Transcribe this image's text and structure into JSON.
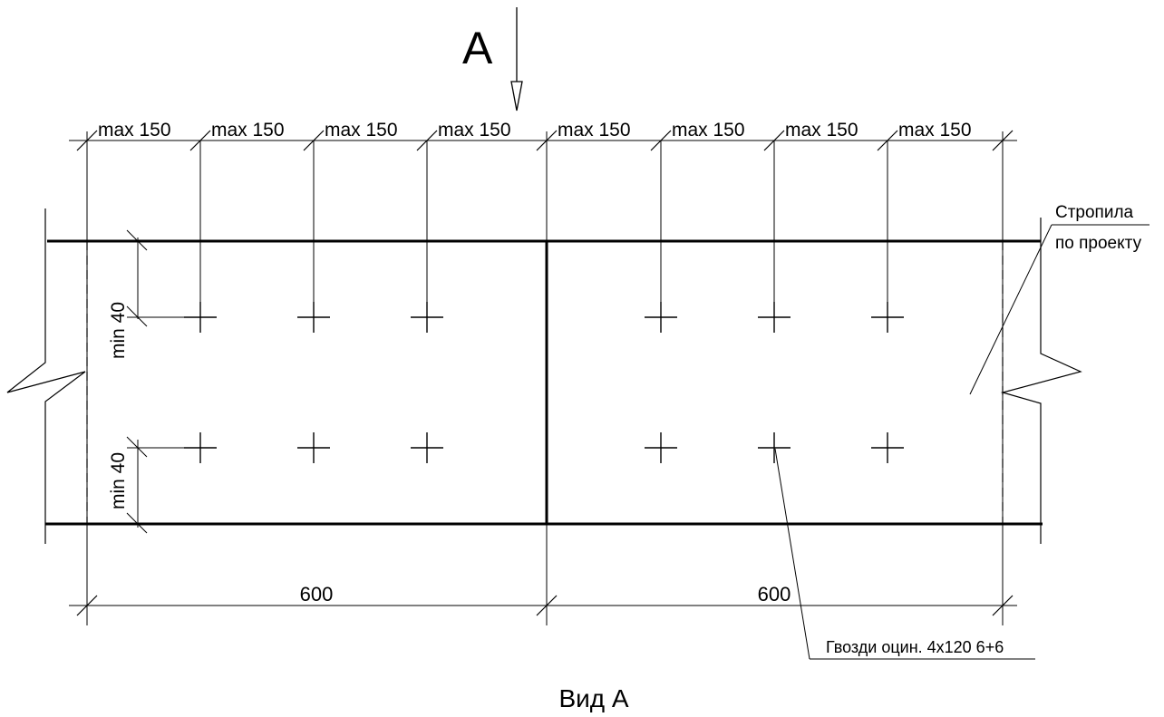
{
  "view_marker": {
    "letter": "А"
  },
  "dimensions": {
    "top_spacing_label": "max 150",
    "top_spacing_count": 8,
    "edge_min_label": "min 40",
    "span_labels": [
      "600",
      "600"
    ]
  },
  "callouts": {
    "rafter_line1": "Стропила",
    "rafter_line2": "по проекту",
    "nails": "Гвозди оцин. 4х120 6+6"
  },
  "caption": "Вид А",
  "colors": {
    "ink": "#000000",
    "background": "#ffffff"
  }
}
